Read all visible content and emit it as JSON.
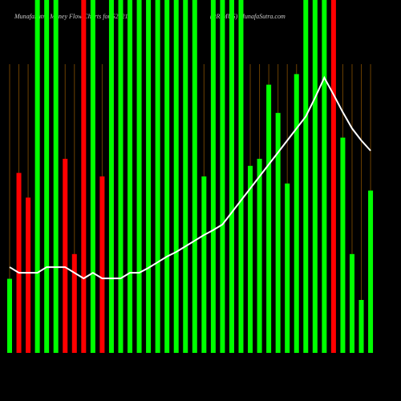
{
  "chart_data": {
    "type": "bar",
    "title": "MunafaSutra Money Flow Charts for 524217",
    "subtitle": "(PRIMUS) MunafaSutra.com",
    "ylim": [
      0,
      100
    ],
    "series": [
      {
        "type": "bar",
        "colors": [
          "#00ff00",
          "#ff0000",
          "#ff0000",
          "#00ff00",
          "#00ff00",
          "#00ff00",
          "#ff0000",
          "#ff0000",
          "#ff0000",
          "#00ff00",
          "#ff0000",
          "#00ff00",
          "#00ff00",
          "#00ff00",
          "#00ff00",
          "#00ff00",
          "#00ff00",
          "#00ff00",
          "#00ff00",
          "#00ff00",
          "#00ff00",
          "#00ff00",
          "#00ff00",
          "#00ff00",
          "#00ff00",
          "#00ff00",
          "#00ff00",
          "#00ff00",
          "#00ff00",
          "#00ff00",
          "#00ff00",
          "#00ff00",
          "#00ff00",
          "#00ff00",
          "#00ff00",
          "#ff0000",
          "#00ff00",
          "#00ff00",
          "#00ff00",
          "#00ff00"
        ],
        "values": [
          21,
          51,
          44,
          100,
          100,
          100,
          55,
          28,
          100,
          100,
          50,
          100,
          100,
          100,
          100,
          100,
          100,
          100,
          100,
          100,
          100,
          50,
          100,
          100,
          100,
          100,
          53,
          55,
          76,
          68,
          48,
          79,
          100,
          100,
          100,
          100,
          61,
          28,
          15,
          46
        ]
      },
      {
        "type": "line",
        "color": "#ffffff",
        "values": [
          24.3,
          22.7,
          22.7,
          22.7,
          24.3,
          24.3,
          24.3,
          22.7,
          21.1,
          22.7,
          21.1,
          21.1,
          21.1,
          22.7,
          22.7,
          24.1,
          25.7,
          27.3,
          28.6,
          30.2,
          31.8,
          33.4,
          34.8,
          36.4,
          39.8,
          43.2,
          46.6,
          50,
          53.4,
          56.8,
          60.2,
          63.6,
          67,
          72.3,
          78,
          73.2,
          68.2,
          63.6,
          60.2,
          57.3
        ]
      }
    ]
  }
}
